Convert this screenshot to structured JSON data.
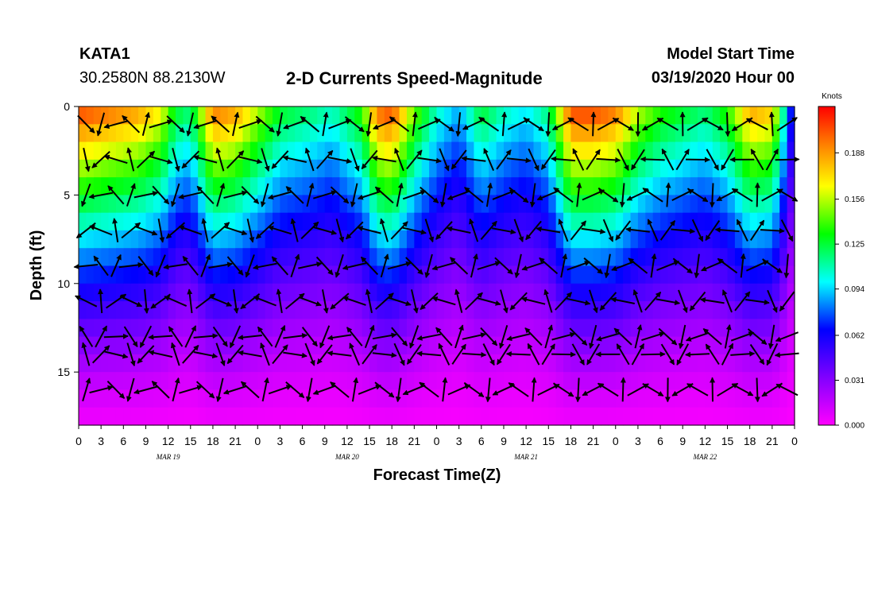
{
  "header": {
    "station": "KATA1",
    "coords": "30.2580N 88.2130W",
    "title": "2-D Currents Speed-Magnitude",
    "model_label": "Model Start Time",
    "model_time": "03/19/2020 Hour 00"
  },
  "chart_data": {
    "type": "heatmap",
    "title": "2-D Currents Speed-Magnitude",
    "xlabel": "Forecast Time(Z)",
    "ylabel": "Depth (ft)",
    "x_range_hours": [
      0,
      96
    ],
    "ylim": [
      0,
      18
    ],
    "y_ticks": [
      "0",
      "5",
      "10",
      "15"
    ],
    "x_tick_labels": [
      "0",
      "3",
      "6",
      "9",
      "12",
      "15",
      "18",
      "21",
      "0",
      "3",
      "6",
      "9",
      "12",
      "15",
      "18",
      "21",
      "0",
      "3",
      "6",
      "9",
      "12",
      "15",
      "18",
      "21",
      "0",
      "3",
      "6",
      "9",
      "12",
      "15",
      "18",
      "21",
      "0"
    ],
    "day_labels": [
      "MAR 19",
      "MAR 20",
      "MAR 21",
      "MAR 22"
    ],
    "colorbar": {
      "unit": "Knots",
      "min": 0.0,
      "max": 0.22,
      "ticks": [
        "0.188",
        "0.156",
        "0.125",
        "0.094",
        "0.062",
        "0.031",
        "0.000"
      ]
    },
    "surface_speed_knots_by_hour": [
      [
        0,
        0.21
      ],
      [
        4,
        0.2
      ],
      [
        8,
        0.19
      ],
      [
        11,
        0.17
      ],
      [
        13,
        0.13
      ],
      [
        15,
        0.12
      ],
      [
        18,
        0.2
      ],
      [
        21,
        0.19
      ],
      [
        24,
        0.16
      ],
      [
        27,
        0.13
      ],
      [
        31,
        0.12
      ],
      [
        34,
        0.11
      ],
      [
        38,
        0.14
      ],
      [
        40,
        0.2
      ],
      [
        42,
        0.21
      ],
      [
        45,
        0.15
      ],
      [
        48,
        0.11
      ],
      [
        51,
        0.09
      ],
      [
        54,
        0.13
      ],
      [
        57,
        0.11
      ],
      [
        60,
        0.1
      ],
      [
        63,
        0.12
      ],
      [
        66,
        0.21
      ],
      [
        69,
        0.21
      ],
      [
        72,
        0.2
      ],
      [
        75,
        0.16
      ],
      [
        78,
        0.14
      ],
      [
        81,
        0.13
      ],
      [
        84,
        0.12
      ],
      [
        87,
        0.14
      ],
      [
        90,
        0.19
      ],
      [
        93,
        0.18
      ],
      [
        96,
        0.05
      ]
    ]
  }
}
